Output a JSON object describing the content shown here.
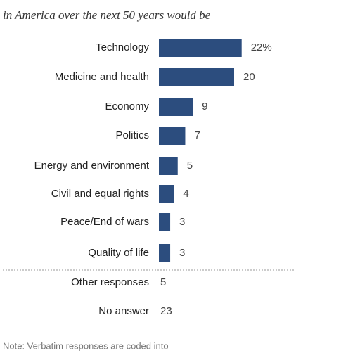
{
  "chart_data": {
    "type": "bar",
    "orientation": "horizontal",
    "subtitle": "in America over the next 50 years would be",
    "categories": [
      "Technology",
      "Medicine and health",
      "Economy",
      "Politics",
      "Energy and environment",
      "Civil and equal rights",
      "Peace/End of wars",
      "Quality of life"
    ],
    "values": [
      22,
      20,
      9,
      7,
      5,
      4,
      3,
      3
    ],
    "value_labels": [
      "22%",
      "20",
      "9",
      "7",
      "5",
      "4",
      "3",
      "3"
    ],
    "color": "#2c4d7e",
    "extra_rows": [
      {
        "label": "Other responses",
        "value": 5
      },
      {
        "label": "No answer",
        "value": 23
      }
    ],
    "note": "Note: Verbatim responses are coded into"
  }
}
